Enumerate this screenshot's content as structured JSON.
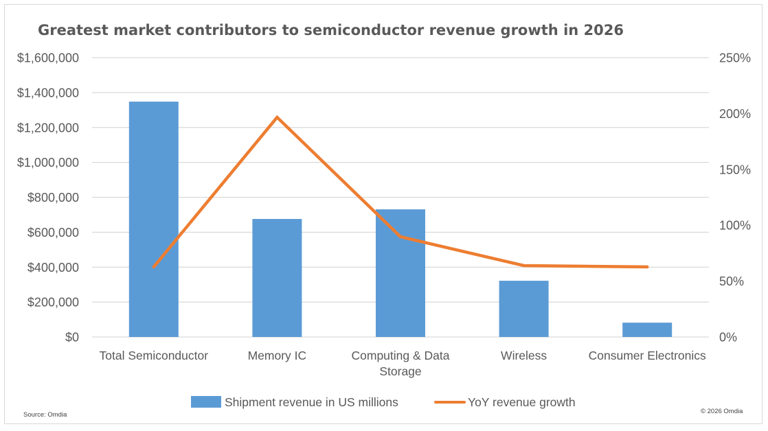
{
  "chart_data": {
    "type": "bar",
    "title": "Greatest market contributors to semiconductor revenue growth in 2026",
    "categories": [
      "Total Semiconductor",
      "Memory IC",
      "Computing & Data Storage",
      "Wireless",
      "Consumer Electronics"
    ],
    "category_lines": [
      [
        "Total Semiconductor"
      ],
      [
        "Memory IC"
      ],
      [
        "Computing & Data",
        "Storage"
      ],
      [
        "Wireless"
      ],
      [
        "Consumer Electronics"
      ]
    ],
    "series": [
      {
        "name": "Shipment revenue in US millions",
        "type": "bar",
        "axis": "left",
        "color": "#5b9bd5",
        "values": [
          1348000,
          676000,
          731000,
          322000,
          82000
        ]
      },
      {
        "name": "YoY revenue growth",
        "type": "line",
        "axis": "right",
        "color": "#ed7d31",
        "values": [
          62.7,
          196.6,
          89.7,
          63.9,
          62.7
        ],
        "unit": "%"
      }
    ],
    "y_left": {
      "ylim": [
        0,
        1600000
      ],
      "ticks": [
        0,
        200000,
        400000,
        600000,
        800000,
        1000000,
        1200000,
        1400000,
        1600000
      ],
      "tick_labels": [
        "$0",
        "$200,000",
        "$400,000",
        "$600,000",
        "$800,000",
        "$1,000,000",
        "$1,200,000",
        "$1,400,000",
        "$1,600,000"
      ]
    },
    "y_right": {
      "ylim": [
        0,
        250
      ],
      "ticks": [
        0,
        50,
        100,
        150,
        200,
        250
      ],
      "tick_labels": [
        "0%",
        "50%",
        "100%",
        "150%",
        "200%",
        "250%"
      ]
    },
    "xlabel": "",
    "ylabel": "",
    "grid": true,
    "legend": "bottom-center",
    "gridline_color": "#d9d9d9"
  },
  "footer": {
    "source": "Source: Omdia",
    "copyright": "© 2026 Omdia"
  }
}
